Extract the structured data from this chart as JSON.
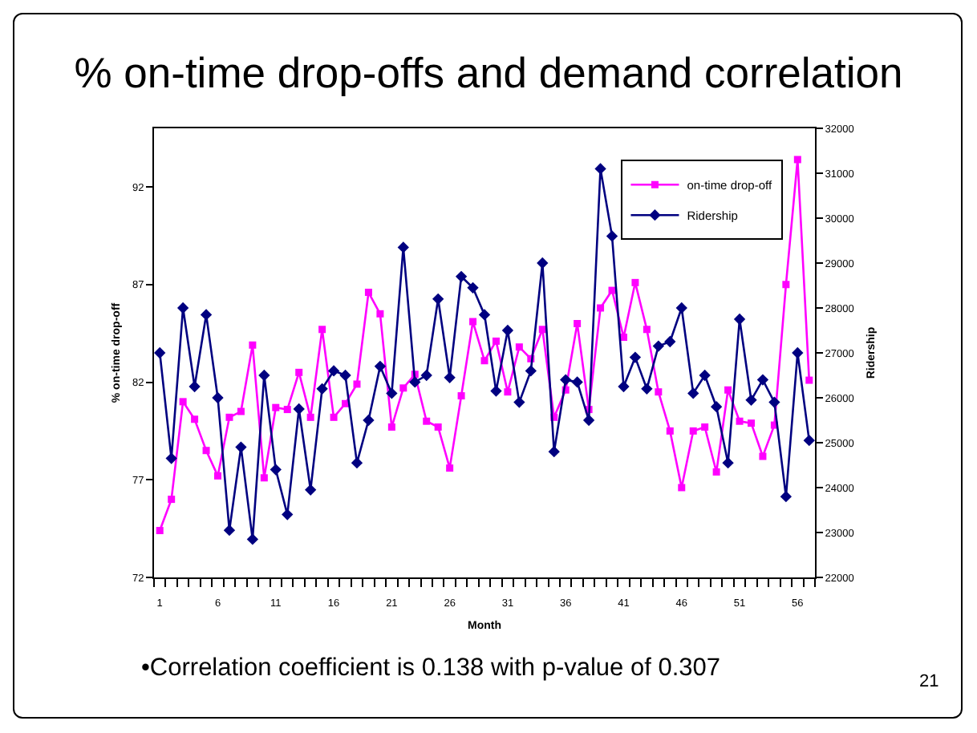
{
  "chart_data": {
    "type": "line",
    "title": "% on-time drop-offs and demand correlation",
    "xlabel": "Month",
    "ylabel": "% on-time drop-off",
    "y2label": "Ridership",
    "annotations": [
      "•Correlation coefficient is 0.138 with p-value of 0.307",
      "21"
    ],
    "x": [
      1,
      2,
      3,
      4,
      5,
      6,
      7,
      8,
      9,
      10,
      11,
      12,
      13,
      14,
      15,
      16,
      17,
      18,
      19,
      20,
      21,
      22,
      23,
      24,
      25,
      26,
      27,
      28,
      29,
      30,
      31,
      32,
      33,
      34,
      35,
      36,
      37,
      38,
      39,
      40,
      41,
      42,
      43,
      44,
      45,
      46,
      47,
      48,
      49,
      50,
      51,
      52,
      53,
      54,
      55,
      56,
      57
    ],
    "xlim": [
      0.5,
      57.5
    ],
    "xticks": [
      1,
      6,
      11,
      16,
      21,
      26,
      31,
      36,
      41,
      46,
      51,
      56
    ],
    "series": [
      {
        "name": "on-time drop-off",
        "color": "#ff00ff",
        "marker": "square",
        "values": [
          74.4,
          76.0,
          81.0,
          80.1,
          78.5,
          77.2,
          80.2,
          80.5,
          83.9,
          77.1,
          80.7,
          80.6,
          82.5,
          80.2,
          84.7,
          80.2,
          80.9,
          81.9,
          86.6,
          85.5,
          79.7,
          81.7,
          82.4,
          80.0,
          79.7,
          77.6,
          81.3,
          85.1,
          83.1,
          84.1,
          81.5,
          83.8,
          83.2,
          84.7,
          80.2,
          81.6,
          85.0,
          80.6,
          85.8,
          86.7,
          84.3,
          87.1,
          84.7,
          81.5,
          79.5,
          76.6,
          79.5,
          79.7,
          77.4,
          81.6,
          80.0,
          79.9,
          78.2,
          79.8,
          87.0,
          93.4,
          82.1
        ]
      },
      {
        "name": "Ridership",
        "color": "#000080",
        "marker": "diamond",
        "axis": "y2",
        "values": [
          27000,
          24650,
          28000,
          26250,
          27850,
          26000,
          23050,
          24900,
          22850,
          26500,
          24400,
          23400,
          25750,
          23950,
          26200,
          26600,
          26500,
          24550,
          25500,
          26700,
          26100,
          29350,
          26350,
          26500,
          28200,
          26450,
          28700,
          28450,
          27850,
          26150,
          27500,
          25900,
          26600,
          29000,
          24800,
          26400,
          26350,
          25500,
          31100,
          29600,
          26250,
          26900,
          26200,
          27150,
          27250,
          28000,
          26100,
          26500,
          25800,
          24550,
          27750,
          25950,
          26400,
          25900,
          23800,
          27000,
          25050
        ]
      }
    ],
    "ylim": [
      72,
      95
    ],
    "yticks": [
      72,
      77,
      82,
      87,
      92
    ],
    "y2lim": [
      22000,
      32000
    ],
    "y2ticks": [
      22000,
      23000,
      24000,
      25000,
      26000,
      27000,
      28000,
      29000,
      30000,
      31000,
      32000
    ],
    "legend": "top right"
  }
}
